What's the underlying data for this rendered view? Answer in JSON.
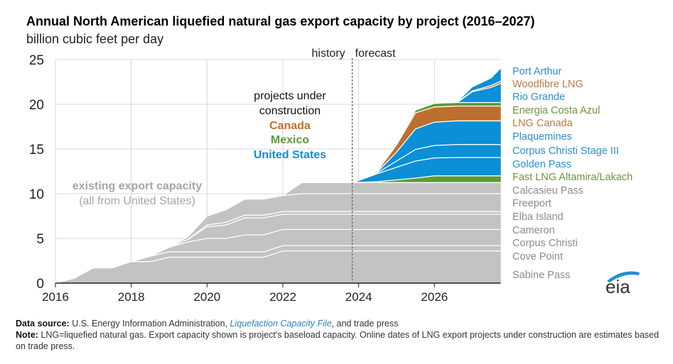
{
  "title": "Annual North American liquefied natural gas export capacity by project (2016–2027)",
  "subtitle": "billion cubic feet per day",
  "notes": {
    "source_label": "Data source:",
    "source_text": " U.S. Energy Information Administration, ",
    "source_link": "Liquefaction Capacity File",
    "source_tail": ", and trade press",
    "note_label": "Note:",
    "note_text": " LNG=liquefied natural gas. Export capacity shown is project's baseload capacity. Online dates of LNG export projects under construction are estimates based on trade press."
  },
  "logo": {
    "text": "eia",
    "icon": "eia-logo-icon"
  },
  "colors": {
    "existing": "#c3c3c3",
    "united_states": "#0b8fd6",
    "canada": "#bd6f2d",
    "mexico": "#5d9a36",
    "grid": "#d9d9d9",
    "separator": "#ffffff"
  },
  "chart_data": {
    "type": "area",
    "stacked": true,
    "title": "Annual North American liquefied natural gas export capacity by project (2016–2027)",
    "ylabel": "billion cubic feet per day",
    "xlabel": "",
    "xlim": [
      2016,
      2028
    ],
    "ylim": [
      0,
      25
    ],
    "xticks": [
      "2016",
      "2018",
      "2020",
      "2022",
      "2024",
      "2026"
    ],
    "xtick_values": [
      2016,
      2018,
      2020,
      2022,
      2024,
      2026
    ],
    "yticks": [
      "0",
      "5",
      "10",
      "15",
      "20",
      "25"
    ],
    "ytick_values": [
      0,
      5,
      10,
      15,
      20,
      25
    ],
    "grid": true,
    "history_forecast_split": 2023.85,
    "history_label": "history",
    "forecast_label": "forecast",
    "annotations": {
      "existing_line1": "existing export capacity",
      "existing_line2": "(all from United States)",
      "construction_line1": "projects under",
      "construction_line2": "construction",
      "canada": "Canada",
      "mexico": "Mexico",
      "united_states": "United States"
    },
    "legend_placement": "right",
    "x": [
      2016.0,
      2016.5,
      2017.0,
      2017.5,
      2018.0,
      2018.5,
      2019.0,
      2019.5,
      2020.0,
      2020.5,
      2021.0,
      2021.5,
      2022.0,
      2022.5,
      2023.0,
      2023.85,
      2024.5,
      2025.0,
      2025.5,
      2026.0,
      2026.6,
      2027.0,
      2027.5,
      2027.75
    ],
    "series": [
      {
        "name": "Sabine Pass",
        "group": "existing",
        "values": [
          0,
          0.55,
          1.7,
          1.7,
          2.4,
          2.4,
          2.9,
          2.9,
          2.9,
          2.9,
          2.9,
          2.9,
          3.6,
          3.6,
          3.6,
          3.6,
          3.6,
          3.6,
          3.6,
          3.6,
          3.6,
          3.6,
          3.6,
          3.6
        ]
      },
      {
        "name": "Cove Point",
        "group": "existing",
        "values": [
          0,
          0,
          0,
          0,
          0,
          0.6,
          0.6,
          0.6,
          0.6,
          0.6,
          0.6,
          0.6,
          0.6,
          0.6,
          0.6,
          0.6,
          0.6,
          0.6,
          0.6,
          0.6,
          0.6,
          0.6,
          0.6,
          0.6
        ]
      },
      {
        "name": "Corpus Christi",
        "group": "existing",
        "values": [
          0,
          0,
          0,
          0,
          0,
          0,
          0.5,
          1.1,
          1.5,
          1.5,
          1.9,
          1.9,
          1.8,
          1.8,
          1.8,
          1.8,
          1.8,
          1.8,
          1.8,
          1.8,
          1.8,
          1.8,
          1.8,
          1.8
        ]
      },
      {
        "name": "Cameron",
        "group": "existing",
        "values": [
          0,
          0,
          0,
          0,
          0,
          0,
          0,
          0.3,
          1.3,
          1.5,
          1.9,
          1.9,
          1.7,
          1.7,
          1.7,
          1.7,
          1.7,
          1.7,
          1.7,
          1.7,
          1.7,
          1.7,
          1.7,
          1.7
        ]
      },
      {
        "name": "Elba Island",
        "group": "existing",
        "values": [
          0,
          0,
          0,
          0,
          0,
          0,
          0,
          0,
          0.2,
          0.3,
          0.3,
          0.3,
          0.3,
          0.3,
          0.3,
          0.3,
          0.3,
          0.3,
          0.3,
          0.3,
          0.3,
          0.3,
          0.3,
          0.3
        ]
      },
      {
        "name": "Freeport",
        "group": "existing",
        "values": [
          0,
          0,
          0,
          0,
          0,
          0,
          0,
          0.3,
          1.0,
          1.4,
          1.8,
          1.8,
          1.8,
          2.0,
          2.0,
          2.0,
          2.0,
          2.0,
          2.0,
          2.0,
          2.0,
          2.0,
          2.0,
          2.0
        ]
      },
      {
        "name": "Calcasieu Pass",
        "group": "existing",
        "values": [
          0,
          0,
          0,
          0,
          0,
          0,
          0,
          0,
          0,
          0,
          0,
          0,
          0,
          1.25,
          1.25,
          1.25,
          1.25,
          1.25,
          1.25,
          1.25,
          1.25,
          1.25,
          1.25,
          1.25
        ]
      },
      {
        "name": "Fast LNG Altamira/Lakach",
        "group": "mexico",
        "values": [
          0,
          0,
          0,
          0,
          0,
          0,
          0,
          0,
          0,
          0,
          0,
          0,
          0,
          0,
          0,
          0,
          0.1,
          0.3,
          0.5,
          0.75,
          0.75,
          0.75,
          0.75,
          0.75
        ]
      },
      {
        "name": "Golden Pass",
        "group": "united_states",
        "values": [
          0,
          0,
          0,
          0,
          0,
          0,
          0,
          0,
          0,
          0,
          0,
          0,
          0,
          0,
          0,
          0,
          0.9,
          1.4,
          1.9,
          2.0,
          2.05,
          2.05,
          2.05,
          2.05
        ]
      },
      {
        "name": "Corpus Christi Stage III",
        "group": "united_states",
        "values": [
          0,
          0,
          0,
          0,
          0,
          0,
          0,
          0,
          0,
          0,
          0,
          0,
          0,
          0,
          0,
          0,
          0.1,
          0.7,
          1.3,
          1.4,
          1.45,
          1.45,
          1.45,
          1.45
        ]
      },
      {
        "name": "Plaquemines",
        "group": "united_states",
        "values": [
          0,
          0,
          0,
          0,
          0,
          0,
          0,
          0,
          0,
          0,
          0,
          0,
          0,
          0,
          0,
          0,
          0.1,
          1.0,
          2.3,
          2.6,
          2.65,
          2.65,
          2.65,
          2.65
        ]
      },
      {
        "name": "LNG Canada",
        "group": "canada",
        "values": [
          0,
          0,
          0,
          0,
          0,
          0,
          0,
          0,
          0,
          0,
          0,
          0,
          0,
          0,
          0,
          0,
          0.1,
          0.8,
          1.8,
          1.7,
          1.65,
          1.65,
          1.65,
          1.65
        ]
      },
      {
        "name": "Energia Costa Azul",
        "group": "mexico",
        "values": [
          0,
          0,
          0,
          0,
          0,
          0,
          0,
          0,
          0,
          0,
          0,
          0,
          0,
          0,
          0,
          0,
          0,
          0,
          0.3,
          0.4,
          0.4,
          0.4,
          0.4,
          0.4
        ]
      },
      {
        "name": "Rio Grande",
        "group": "united_states",
        "values": [
          0,
          0,
          0,
          0,
          0,
          0,
          0,
          0,
          0,
          0,
          0,
          0,
          0,
          0,
          0,
          0,
          0,
          0,
          0,
          0,
          0,
          1.2,
          1.7,
          2.15
        ]
      },
      {
        "name": "Woodfibre LNG",
        "group": "canada",
        "values": [
          0,
          0,
          0,
          0,
          0,
          0,
          0,
          0,
          0,
          0,
          0,
          0,
          0,
          0,
          0,
          0,
          0,
          0,
          0,
          0,
          0,
          0.1,
          0.2,
          0.25
        ]
      },
      {
        "name": "Port Arthur",
        "group": "united_states",
        "values": [
          0,
          0,
          0,
          0,
          0,
          0,
          0,
          0,
          0,
          0,
          0,
          0,
          0,
          0,
          0,
          0,
          0,
          0,
          0,
          0,
          0,
          0.4,
          0.8,
          1.4
        ]
      }
    ],
    "legend": [
      {
        "label": "Port Arthur",
        "group": "united_states"
      },
      {
        "label": "Woodfibre LNG",
        "group": "canada"
      },
      {
        "label": "Rio Grande",
        "group": "united_states"
      },
      {
        "label": "Energia Costa Azul",
        "group": "mexico"
      },
      {
        "label": "LNG Canada",
        "group": "canada"
      },
      {
        "label": "Plaquemines",
        "group": "united_states"
      },
      {
        "label": "Corpus Christi Stage III",
        "group": "united_states"
      },
      {
        "label": "Golden Pass",
        "group": "united_states"
      },
      {
        "label": "Fast LNG Altamira/Lakach",
        "group": "mexico"
      },
      {
        "label": "Calcasieu Pass",
        "group": "existing"
      },
      {
        "label": "Freeport",
        "group": "existing"
      },
      {
        "label": "Elba Island",
        "group": "existing"
      },
      {
        "label": "Cameron",
        "group": "existing"
      },
      {
        "label": "Corpus Christi",
        "group": "existing"
      },
      {
        "label": "Cove Point",
        "group": "existing"
      },
      {
        "label": "Sabine Pass",
        "group": "existing"
      }
    ]
  }
}
